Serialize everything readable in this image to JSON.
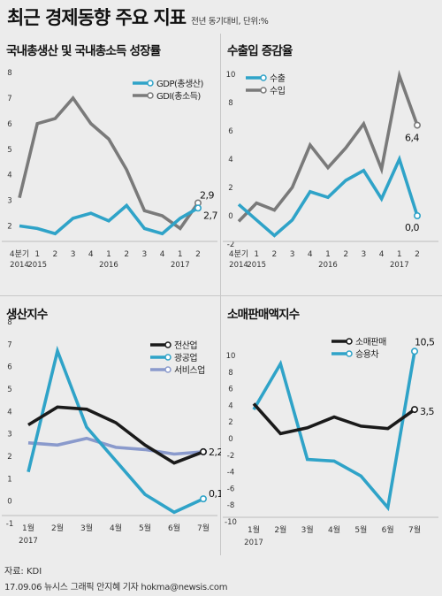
{
  "header": {
    "title": "최근 경제동향 주요 지표",
    "subtitle": "전년 동기대비, 단위:%"
  },
  "footer": {
    "source": "자료: KDI",
    "credit": "17.09.06 뉴시스 그래픽 안지혜 기자 hokma@newsis.com"
  },
  "chart_data": [
    {
      "id": "gdp",
      "type": "line",
      "title": "국내총생산 및 국내총소득 성장률",
      "categories": [
        "4분기|2014",
        "1|2015",
        "2",
        "3",
        "4",
        "1|2016",
        "2",
        "3",
        "4",
        "1|2017",
        "2"
      ],
      "ylim": [
        1.5,
        8
      ],
      "yticks": [
        2,
        3,
        4,
        5,
        6,
        7,
        8
      ],
      "series": [
        {
          "name": "GDP(총생산)",
          "color": "#2fa3c8",
          "values": [
            2.0,
            1.9,
            1.7,
            2.3,
            2.5,
            2.2,
            2.8,
            1.9,
            1.7,
            2.3,
            2.7
          ]
        },
        {
          "name": "GDI(총소득)",
          "color": "#7a7a7a",
          "values": [
            3.1,
            6.0,
            6.2,
            7.0,
            6.0,
            5.4,
            4.2,
            2.6,
            2.4,
            1.9,
            2.9
          ]
        }
      ],
      "end_labels": [
        "2,7",
        "2,9"
      ],
      "legend": "top-right"
    },
    {
      "id": "trade",
      "type": "line",
      "title": "수출입 증감율",
      "categories": [
        "4분기|2014",
        "1|2015",
        "2",
        "3",
        "4",
        "1|2016",
        "2",
        "3",
        "4",
        "1|2017",
        "2"
      ],
      "ylim": [
        -2,
        10
      ],
      "yticks": [
        -2,
        0,
        2,
        4,
        6,
        8,
        10
      ],
      "series": [
        {
          "name": "수출",
          "color": "#2fa3c8",
          "values": [
            0.8,
            -0.3,
            -1.4,
            -0.3,
            1.7,
            1.3,
            2.5,
            3.2,
            1.2,
            4.0,
            0.0
          ]
        },
        {
          "name": "수입",
          "color": "#7a7a7a",
          "values": [
            -0.4,
            0.9,
            0.4,
            2.0,
            5.0,
            3.4,
            4.8,
            6.5,
            3.3,
            9.9,
            6.4
          ]
        }
      ],
      "end_labels": [
        "0,0",
        "6,4"
      ],
      "legend": "top-left"
    },
    {
      "id": "production",
      "type": "line",
      "title": "생산지수",
      "categories": [
        "1월|2017",
        "2월",
        "3월",
        "4월",
        "5월",
        "6월",
        "7월"
      ],
      "ylim": [
        -1,
        8
      ],
      "yticks": [
        -1,
        0,
        1,
        2,
        3,
        4,
        5,
        6,
        7,
        8
      ],
      "series": [
        {
          "name": "전산업",
          "color": "#1a1a1a",
          "values": [
            3.4,
            4.2,
            4.1,
            3.5,
            2.5,
            1.7,
            2.2
          ]
        },
        {
          "name": "광공업",
          "color": "#2fa3c8",
          "values": [
            1.3,
            6.7,
            3.3,
            1.8,
            0.3,
            -0.5,
            0.1
          ]
        },
        {
          "name": "서비스업",
          "color": "#8a9acc",
          "values": [
            2.6,
            2.5,
            2.8,
            2.4,
            2.3,
            2.1,
            2.2
          ]
        }
      ],
      "end_labels": [
        "2,2",
        "0,1"
      ],
      "legend": "top-right"
    },
    {
      "id": "retail",
      "type": "line",
      "title": "소매판매액지수",
      "categories": [
        "1월|2017",
        "2월",
        "3월",
        "4월",
        "5월",
        "6월",
        "7월"
      ],
      "ylim": [
        -10,
        10
      ],
      "yticks": [
        -10,
        -8,
        -6,
        -4,
        -2,
        0,
        2,
        4,
        6,
        8,
        10
      ],
      "series": [
        {
          "name": "소매판매",
          "color": "#1a1a1a",
          "values": [
            4.2,
            0.6,
            1.3,
            2.6,
            1.5,
            1.2,
            3.5
          ]
        },
        {
          "name": "승용차",
          "color": "#2fa3c8",
          "values": [
            3.5,
            9.0,
            -2.5,
            -2.7,
            -4.5,
            -8.3,
            10.5
          ]
        }
      ],
      "end_labels": [
        "3,5",
        "10,5"
      ],
      "legend": "top-left"
    }
  ]
}
